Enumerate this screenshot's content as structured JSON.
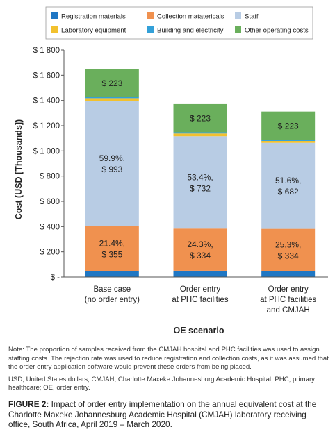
{
  "chart_data": {
    "type": "bar",
    "stacked": true,
    "xlabel": "OE scenario",
    "ylabel": "Cost (USD [Thousands])",
    "ylim": [
      0,
      1800
    ],
    "yticks": [
      {
        "value": 0,
        "label": "$ -"
      },
      {
        "value": 200,
        "label": "$ 200"
      },
      {
        "value": 400,
        "label": "$ 400"
      },
      {
        "value": 600,
        "label": "$ 600"
      },
      {
        "value": 800,
        "label": "$ 800"
      },
      {
        "value": 1000,
        "label": "$ 1 000"
      },
      {
        "value": 1200,
        "label": "$ 1 200"
      },
      {
        "value": 1400,
        "label": "$ 1 400"
      },
      {
        "value": 1600,
        "label": "$ 1 600"
      },
      {
        "value": 1800,
        "label": "$ 1 800"
      }
    ],
    "grid": false,
    "legend_position": "top",
    "categories": [
      [
        "Base case",
        "(no order entry)"
      ],
      [
        "Order entry",
        "at PHC facilities"
      ],
      [
        "Order entry",
        "at PHC  facilities",
        "and CMJAH"
      ]
    ],
    "series": [
      {
        "name": "Registration materials",
        "color": "#1f77c4",
        "values": [
          48,
          50,
          48
        ]
      },
      {
        "name": "Collection matatericals",
        "color": "#f0914f",
        "values": [
          355,
          334,
          334
        ]
      },
      {
        "name": "Staff",
        "color": "#b8cce4",
        "values": [
          993,
          732,
          682
        ]
      },
      {
        "name": "Laboratory equipment",
        "color": "#f2c12e",
        "values": [
          22,
          22,
          15
        ]
      },
      {
        "name": "Building and electricity",
        "color": "#33a0d8",
        "values": [
          10,
          10,
          10
        ]
      },
      {
        "name": "Other operating costs",
        "color": "#6aaf5c",
        "values": [
          223,
          223,
          223
        ]
      }
    ],
    "data_labels": [
      {
        "bar": 0,
        "series": 1,
        "lines": [
          "21.4%,",
          "$ 355"
        ]
      },
      {
        "bar": 0,
        "series": 2,
        "lines": [
          "59.9%,",
          "$ 993"
        ]
      },
      {
        "bar": 0,
        "series": 5,
        "lines": [
          "$ 223"
        ]
      },
      {
        "bar": 1,
        "series": 1,
        "lines": [
          "24.3%,",
          "$ 334"
        ]
      },
      {
        "bar": 1,
        "series": 2,
        "lines": [
          "53.4%,",
          "$ 732"
        ]
      },
      {
        "bar": 1,
        "series": 5,
        "lines": [
          "$ 223"
        ]
      },
      {
        "bar": 2,
        "series": 1,
        "lines": [
          "25.3%,",
          "$ 334"
        ]
      },
      {
        "bar": 2,
        "series": 2,
        "lines": [
          "51.6%,",
          "$ 682"
        ]
      },
      {
        "bar": 2,
        "series": 5,
        "lines": [
          "$ 223"
        ]
      }
    ]
  },
  "notes": {
    "note": "Note: The proportion of samples received from the CMJAH hospital and PHC facilities was used to assign staffing costs. The rejection rate was used to reduce registration and collection costs, as it was assumed that the order entry application software would prevent these orders from being placed.",
    "abbreviations": "USD, United States dollars; CMJAH, Charlotte Maxeke Johannesburg Academic Hospital; PHC, primary healthcare; OE, order entry."
  },
  "caption": {
    "label": "FIGURE 2:",
    "text": " Impact of order entry implementation on the annual equivalent cost at the Charlotte Maxeke Johannesburg Academic Hospital (CMJAH) laboratory receiving office, South Africa, April 2019 – March 2020."
  }
}
